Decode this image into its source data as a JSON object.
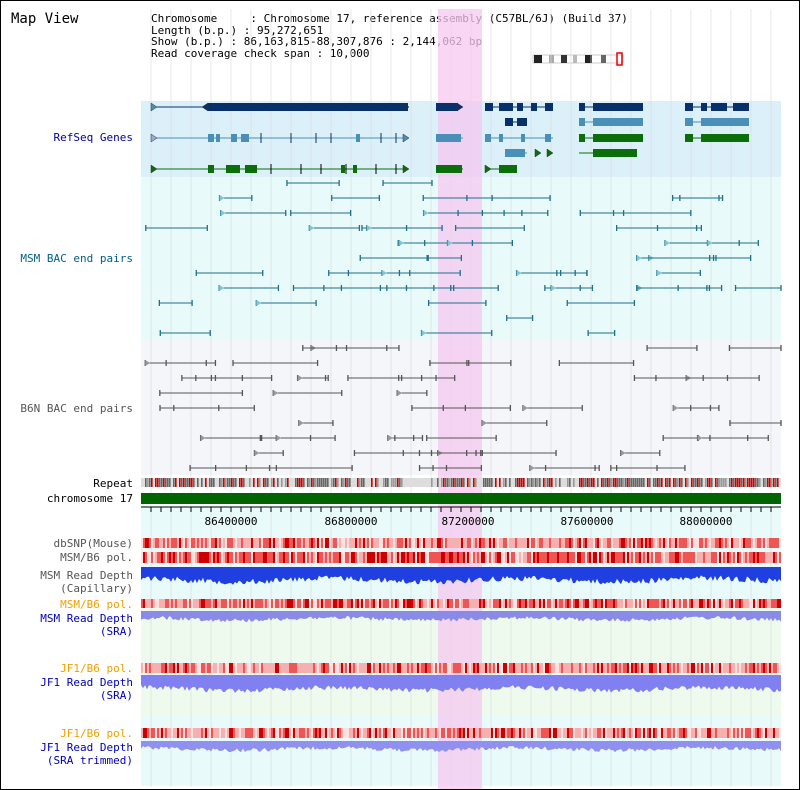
{
  "title": "Map View",
  "info": {
    "line1": "Chromosome     : Chromosome 17, reference assembly (C57BL/6J) (Build 37)",
    "line2": "Length (b.p.) : 95,272,651",
    "line3": "Show (b.p.) : 86,163,815-88,307,876 : 2,144,062 bp",
    "line4": "Read coverage check span : 10,000"
  },
  "tracks": {
    "refseq": "RefSeq Genes",
    "msm_bac": "MSM BAC end pairs",
    "b6n_bac": "B6N BAC end pairs",
    "repeat": "Repeat",
    "chrom": "chromosome 17",
    "dbsnp": "dbSNP(Mouse)",
    "msm_b6_pol_1": "MSM/B6 pol.",
    "msm_depth_cap_1": "MSM Read Depth",
    "msm_depth_cap_2": "(Capillary)",
    "msm_b6_pol_2": "MSM/B6 pol.",
    "msm_depth_sra_1": "MSM Read Depth",
    "msm_depth_sra_2": "(SRA)",
    "jf1_pol_1": "JF1/B6 pol.",
    "jf1_depth_1": "JF1 Read Depth",
    "jf1_depth_1b": "(SRA)",
    "jf1_pol_2": "JF1/B6 pol.",
    "jf1_depth_2": "JF1 Read Depth",
    "jf1_depth_2b": "(SRA trimmed)"
  },
  "axis": {
    "ticks": [
      "86400000",
      "86800000",
      "87200000",
      "87600000",
      "88000000"
    ]
  },
  "colors": {
    "refseq_label": "#0000a0",
    "msm_label": "#005f86",
    "b6n_label": "#555555",
    "orange_label": "#f0a000",
    "blue_label": "#0000c0",
    "highlight": "#f5c8f0",
    "chrom_bar": "#006400"
  }
}
